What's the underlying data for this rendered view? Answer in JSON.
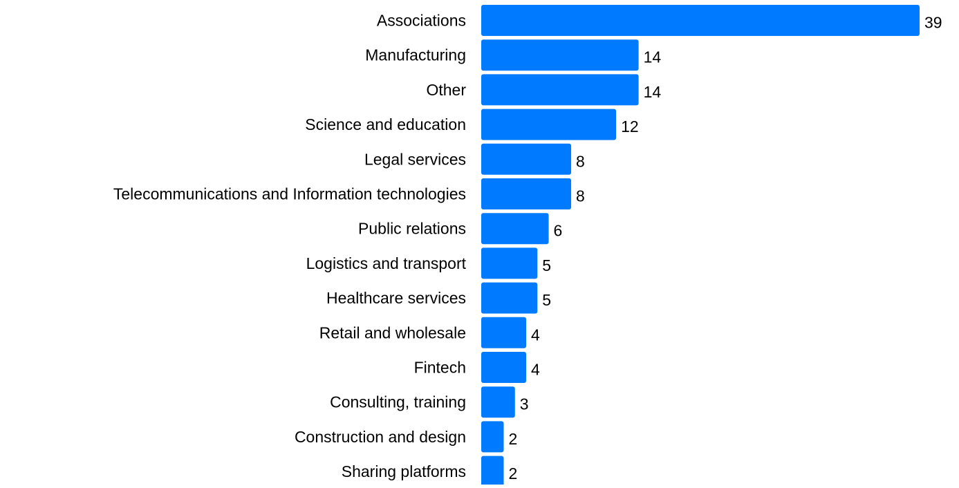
{
  "chart_data": {
    "type": "bar",
    "orientation": "horizontal",
    "categories": [
      "Associations",
      "Manufacturing",
      "Other",
      "Science and education",
      "Legal services",
      "Telecommunications and Information technologies",
      "Public relations",
      "Logistics and transport",
      "Healthcare services",
      "Retail and wholesale",
      "Fintech",
      "Consulting, training",
      "Construction and design",
      "Sharing platforms"
    ],
    "values": [
      39,
      14,
      14,
      12,
      8,
      8,
      6,
      5,
      5,
      4,
      4,
      3,
      2,
      2
    ],
    "data_labels": [
      "39",
      "14",
      "14",
      "12",
      "8",
      "8",
      "6",
      "5",
      "5",
      "4",
      "4",
      "3",
      "2",
      "2"
    ],
    "xlim": [
      0,
      39
    ],
    "grid": false,
    "legend": "none",
    "bar_color": "#007AFF"
  }
}
